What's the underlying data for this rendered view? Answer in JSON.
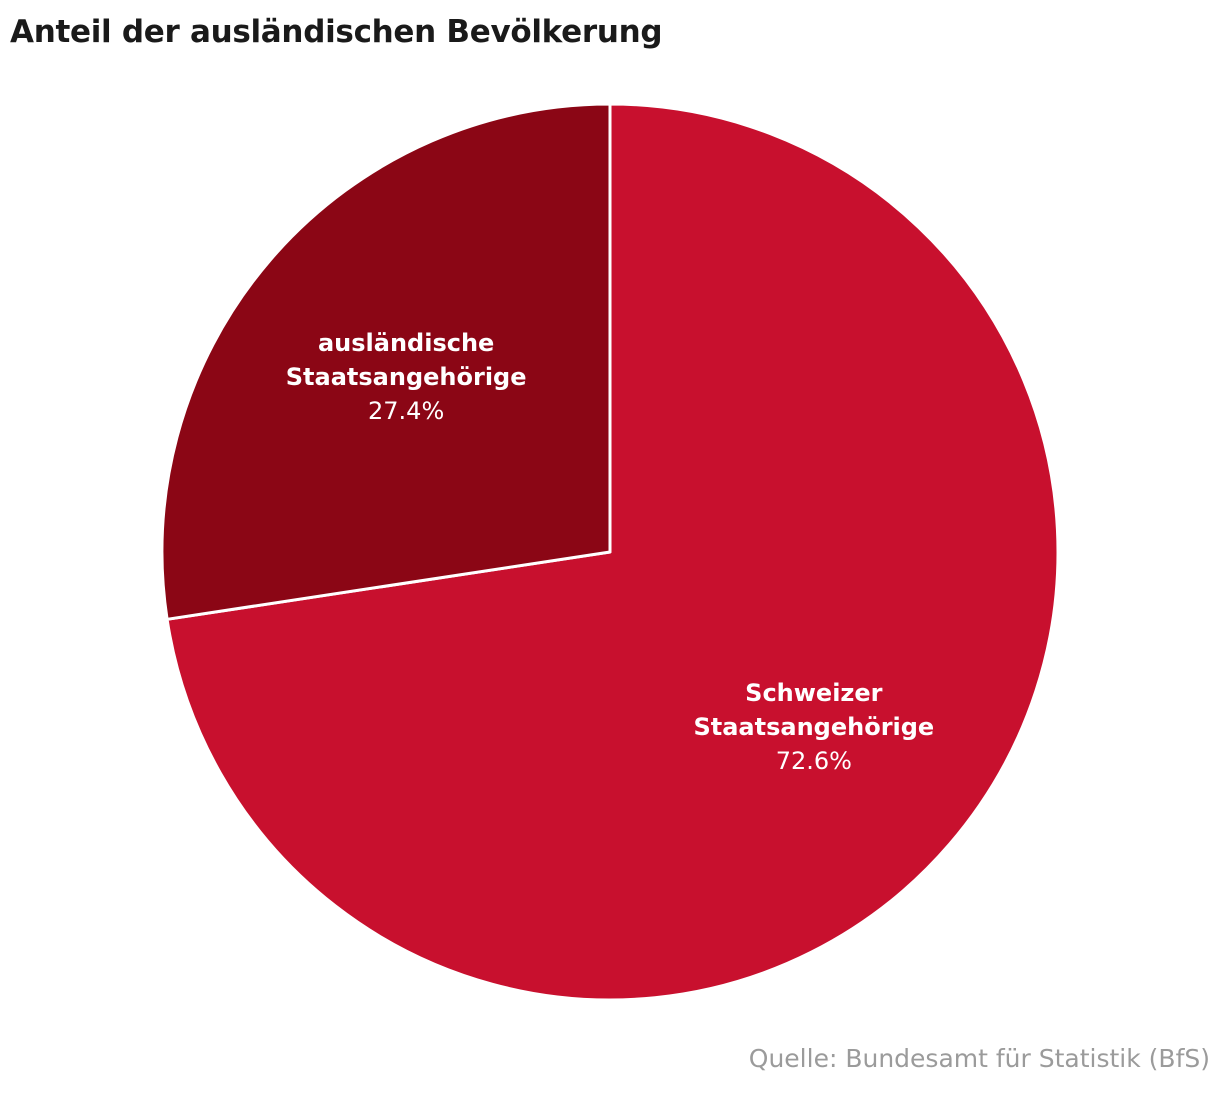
{
  "chart_data": {
    "type": "pie",
    "title": "Anteil der ausländischen Bevölkerung",
    "slices": [
      {
        "label_lines": [
          "Schweizer",
          "Staatsangehörige"
        ],
        "value": 72.6,
        "value_label": "72.6%",
        "color": "#c8102e"
      },
      {
        "label_lines": [
          "ausländische",
          "Staatsangehörige"
        ],
        "value": 27.4,
        "value_label": "27.4%",
        "color": "#8b0615"
      }
    ],
    "start_angle": "12 o'clock",
    "direction": "clockwise",
    "slice_border_color": "#ffffff",
    "legend": "none",
    "source": "Quelle: Bundesamt für Statistik (BfS)"
  }
}
